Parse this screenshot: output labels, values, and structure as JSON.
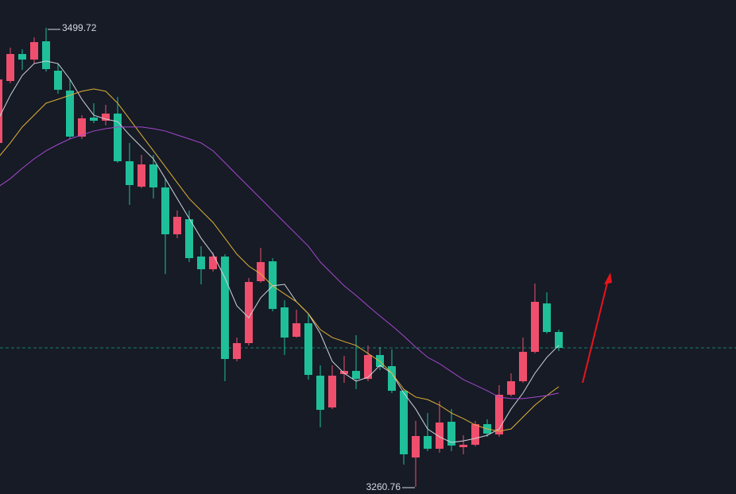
{
  "chart_data": {
    "type": "candlestick",
    "categories": [
      null,
      null,
      null,
      null,
      null,
      null,
      null,
      null,
      null,
      null,
      null,
      null,
      null,
      null,
      null,
      null,
      null,
      null,
      null,
      null,
      null,
      null,
      null,
      null,
      null,
      null,
      null,
      null,
      null,
      null,
      null,
      null,
      null,
      null,
      null,
      null,
      null,
      null,
      null,
      null,
      null,
      null,
      null,
      null,
      null,
      null,
      null,
      null
    ],
    "open": [
      3439.77,
      3472.02,
      3486.08,
      3483.18,
      3492.69,
      3477.39,
      3467.06,
      3443.08,
      3453.0,
      3451.35,
      3455.07,
      3430.26,
      3417.03,
      3428.61,
      3416.62,
      3392.23,
      3400.08,
      3380.65,
      3374.04,
      3380.65,
      3327.32,
      3335.59,
      3367.84,
      3378.17,
      3354.19,
      3338.9,
      3345.92,
      3318.64,
      3302.1,
      3319.46,
      3321.12,
      3316.98,
      3329.39,
      3323.6,
      3310.78,
      3276.05,
      3287.22,
      3280.6,
      3294.66,
      3281.43,
      3282.67,
      3293.42,
      3288.04,
      3308.72,
      3315.74,
      3331.04,
      3356.26,
      3341.38
    ],
    "close": [
      3472.85,
      3486.08,
      3483.18,
      3492.28,
      3478.22,
      3467.47,
      3443.08,
      3452.59,
      3451.35,
      3455.07,
      3430.26,
      3417.86,
      3428.61,
      3416.62,
      3392.23,
      3401.32,
      3379.83,
      3374.04,
      3380.65,
      3327.32,
      3335.59,
      3367.42,
      3377.76,
      3353.37,
      3338.48,
      3345.92,
      3319.05,
      3300.86,
      3318.64,
      3321.12,
      3316.98,
      3329.39,
      3323.19,
      3310.78,
      3277.71,
      3287.22,
      3280.6,
      3294.25,
      3282.26,
      3282.67,
      3293.42,
      3288.46,
      3308.72,
      3315.74,
      3331.04,
      3357.09,
      3341.38,
      3333.11
    ],
    "high": [
      3474.91,
      3489.38,
      3488.56,
      3494.76,
      3499.72,
      3481.12,
      3472.85,
      3454.24,
      3460.44,
      3459.62,
      3463.75,
      3439.77,
      3433.57,
      3433.57,
      3421.17,
      3404.63,
      3404.63,
      3386.03,
      3382.72,
      3381.89,
      3338.48,
      3369.49,
      3385.2,
      3379.83,
      3357.91,
      3352.95,
      3350.89,
      3324.01,
      3324.01,
      3328.97,
      3339.72,
      3334.35,
      3333.52,
      3332.28,
      3311.61,
      3295.07,
      3299.21,
      3305.41,
      3301.27,
      3287.63,
      3295.07,
      3295.9,
      3313.68,
      3319.88,
      3338.48,
      3366.6,
      3362.05,
      3342.62
    ],
    "low": [
      3437.71,
      3470.78,
      3477.81,
      3481.12,
      3476.98,
      3465.41,
      3441.84,
      3441.84,
      3450.11,
      3448.87,
      3429.44,
      3407.53,
      3416.21,
      3410.83,
      3371.56,
      3390.16,
      3377.76,
      3366.18,
      3372.8,
      3315.74,
      3326.08,
      3334.35,
      3367.01,
      3352.13,
      3329.39,
      3338.48,
      3316.57,
      3291.76,
      3301.27,
      3314.92,
      3311.61,
      3315.74,
      3321.53,
      3309.54,
      3272.33,
      3260.76,
      3279.36,
      3278.53,
      3279.36,
      3277.71,
      3281.84,
      3286.8,
      3286.8,
      3307.89,
      3314.92,
      3330.21,
      3340.55,
      3331.45
    ],
    "up_color": "#ef4f6d",
    "down_color": "#1fbf9a",
    "lines": [
      {
        "color": "#cfd3da",
        "values": [
          3452.2,
          3464.6,
          3474.9,
          3481.1,
          3482.4,
          3481.1,
          3472.9,
          3462.5,
          3454.2,
          3452.2,
          3450.9,
          3443.9,
          3437.7,
          3431.5,
          3421.2,
          3410.8,
          3400.5,
          3390.2,
          3381.9,
          3369.5,
          3355.0,
          3348.8,
          3359.2,
          3365.4,
          3366.2,
          3357.1,
          3350.9,
          3340.6,
          3326.1,
          3319.9,
          3315.8,
          3317.8,
          3324.0,
          3319.9,
          3309.6,
          3301.3,
          3290.9,
          3286.8,
          3283.9,
          3284.7,
          3286.0,
          3287.6,
          3290.9,
          3301.3,
          3309.6,
          3319.9,
          3328.2,
          3334.4
        ]
      },
      {
        "color": "#e0b034",
        "values": [
          3432.3,
          3439.8,
          3448.1,
          3454.3,
          3460.5,
          3462.5,
          3464.6,
          3466.7,
          3467.9,
          3466.7,
          3460.5,
          3452.2,
          3443.9,
          3435.7,
          3427.4,
          3419.1,
          3410.8,
          3404.6,
          3398.4,
          3390.2,
          3381.9,
          3375.7,
          3371.6,
          3365.4,
          3361.2,
          3357.1,
          3350.9,
          3342.6,
          3338.5,
          3336.4,
          3334.4,
          3330.2,
          3326.1,
          3319.9,
          3311.6,
          3307.5,
          3306.2,
          3303.3,
          3299.2,
          3296.3,
          3293.0,
          3290.9,
          3289.7,
          3290.9,
          3297.1,
          3303.3,
          3308.3,
          3312.9
        ]
      },
      {
        "color": "#a647cc",
        "values": [
          3417.0,
          3421.2,
          3426.6,
          3431.5,
          3435.7,
          3439.0,
          3441.9,
          3443.9,
          3446.0,
          3447.2,
          3448.1,
          3448.1,
          3448.1,
          3447.2,
          3446.0,
          3443.9,
          3441.9,
          3439.8,
          3435.7,
          3429.5,
          3423.2,
          3417.0,
          3410.8,
          3404.6,
          3398.4,
          3392.2,
          3386.0,
          3377.8,
          3371.6,
          3365.4,
          3360.4,
          3355.0,
          3349.7,
          3344.7,
          3339.3,
          3333.5,
          3328.2,
          3324.9,
          3320.7,
          3316.6,
          3313.7,
          3310.8,
          3307.5,
          3306.7,
          3306.7,
          3307.5,
          3308.3,
          3309.6
        ]
      }
    ],
    "annotations": [
      "3499.72",
      "3260.76"
    ],
    "ylim": [
      3257.05,
      3514.19
    ]
  }
}
